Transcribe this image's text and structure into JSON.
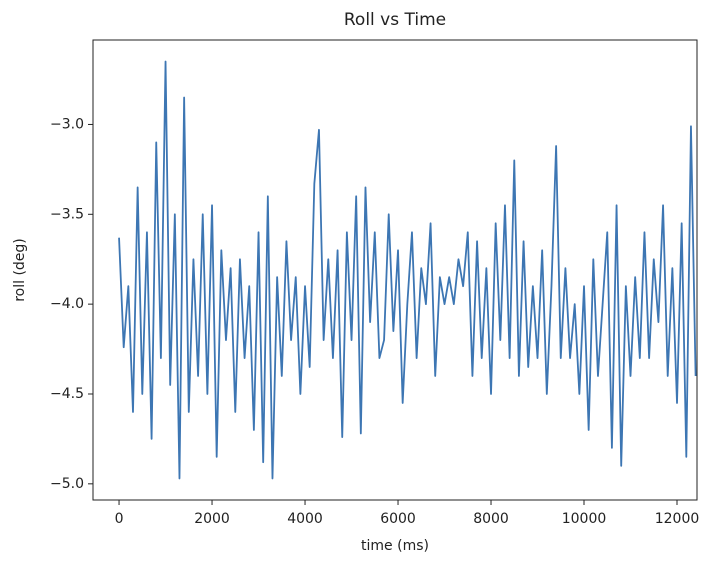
{
  "chart_data": {
    "type": "line",
    "title": "Roll vs Time",
    "x_label": "time (ms)",
    "y_label": "roll (deg)",
    "x": [
      0,
      100,
      200,
      300,
      400,
      500,
      600,
      700,
      800,
      900,
      1000,
      1100,
      1200,
      1300,
      1400,
      1500,
      1600,
      1700,
      1800,
      1900,
      2000,
      2100,
      2200,
      2300,
      2400,
      2500,
      2600,
      2700,
      2800,
      2900,
      3000,
      3100,
      3200,
      3300,
      3400,
      3500,
      3600,
      3700,
      3800,
      3900,
      4000,
      4100,
      4200,
      4300,
      4400,
      4500,
      4600,
      4700,
      4800,
      4900,
      5000,
      5100,
      5200,
      5300,
      5400,
      5500,
      5600,
      5700,
      5800,
      5900,
      6000,
      6100,
      6200,
      6300,
      6400,
      6500,
      6600,
      6700,
      6800,
      6900,
      7000,
      7100,
      7200,
      7300,
      7400,
      7500,
      7600,
      7700,
      7800,
      7900,
      8000,
      8100,
      8200,
      8300,
      8400,
      8500,
      8600,
      8700,
      8800,
      8900,
      9000,
      9100,
      9200,
      9300,
      9400,
      9500,
      9600,
      9700,
      9800,
      9900,
      10000,
      10100,
      10200,
      10300,
      10400,
      10500,
      10600,
      10700,
      10800,
      10900,
      11000,
      11100,
      11200,
      11300,
      11400,
      11500,
      11600,
      11700,
      11800,
      11900,
      12000,
      12100,
      12200,
      12300,
      12400
    ],
    "series": [
      {
        "name": "roll",
        "color": "#3d76b3",
        "values": [
          -3.63,
          -4.24,
          -3.9,
          -4.6,
          -3.35,
          -4.5,
          -3.6,
          -4.75,
          -3.1,
          -4.3,
          -2.65,
          -4.45,
          -3.5,
          -4.97,
          -2.85,
          -4.6,
          -3.75,
          -4.4,
          -3.5,
          -4.5,
          -3.45,
          -4.85,
          -3.7,
          -4.2,
          -3.8,
          -4.6,
          -3.75,
          -4.3,
          -3.9,
          -4.7,
          -3.6,
          -4.88,
          -3.4,
          -4.97,
          -3.85,
          -4.4,
          -3.65,
          -4.2,
          -3.85,
          -4.5,
          -3.9,
          -4.35,
          -3.33,
          -3.03,
          -4.2,
          -3.75,
          -4.3,
          -3.7,
          -4.74,
          -3.6,
          -4.2,
          -3.4,
          -4.72,
          -3.35,
          -4.1,
          -3.6,
          -4.3,
          -4.2,
          -3.5,
          -4.15,
          -3.7,
          -4.55,
          -4.0,
          -3.6,
          -4.3,
          -3.8,
          -4.0,
          -3.55,
          -4.4,
          -3.85,
          -4.0,
          -3.85,
          -4.0,
          -3.75,
          -3.9,
          -3.6,
          -4.4,
          -3.65,
          -4.3,
          -3.8,
          -4.5,
          -3.55,
          -4.2,
          -3.45,
          -4.3,
          -3.2,
          -4.4,
          -3.65,
          -4.35,
          -3.9,
          -4.3,
          -3.7,
          -4.5,
          -3.9,
          -3.12,
          -4.3,
          -3.8,
          -4.3,
          -4.0,
          -4.5,
          -3.9,
          -4.7,
          -3.75,
          -4.4,
          -4.0,
          -3.6,
          -4.8,
          -3.45,
          -4.9,
          -3.9,
          -4.4,
          -3.85,
          -4.3,
          -3.6,
          -4.3,
          -3.75,
          -4.1,
          -3.45,
          -4.4,
          -3.8,
          -4.55,
          -3.55,
          -4.85,
          -3.01,
          -4.4
        ]
      }
    ],
    "xlim": [
      -560,
      12430
    ],
    "ylim": [
      -5.09,
      -2.53
    ],
    "xticks": [
      0,
      2000,
      4000,
      6000,
      8000,
      10000,
      12000
    ],
    "yticks": [
      {
        "value": -5,
        "label": "−5.0"
      },
      {
        "value": -4.5,
        "label": "−4.5"
      },
      {
        "value": -4,
        "label": "−4.0"
      },
      {
        "value": -3.5,
        "label": "−3.5"
      },
      {
        "value": -3,
        "label": "−3.0"
      }
    ],
    "grid": false
  }
}
